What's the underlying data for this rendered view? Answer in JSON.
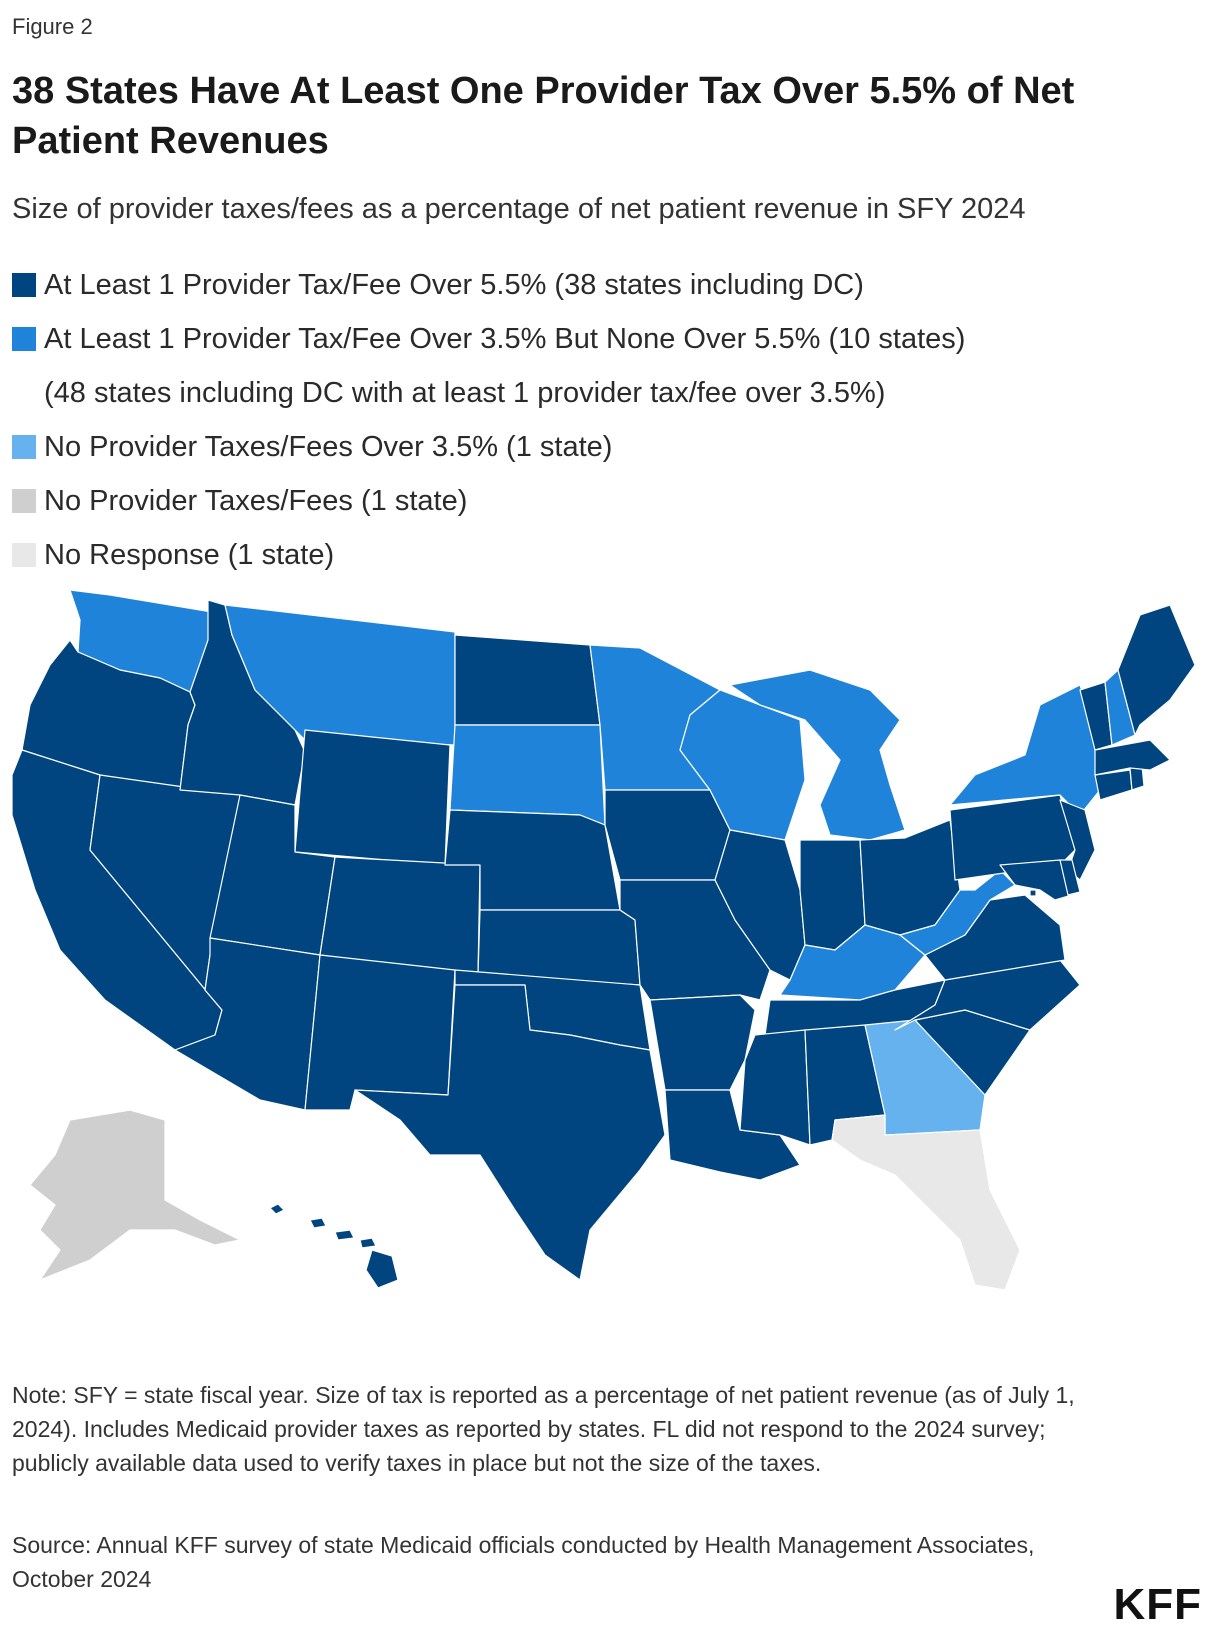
{
  "figure_label": "Figure 2",
  "title": "38 States Have At Least One Provider Tax Over 5.5% of Net Patient Revenues",
  "subtitle": "Size of provider taxes/fees as a percentage of net patient revenue in SFY 2024",
  "colors": {
    "over_5_5": "#00457f",
    "over_3_5": "#1f84d9",
    "none_over_3_5": "#66b2ee",
    "no_taxes": "#cfcfcf",
    "no_response": "#e8e8e8"
  },
  "legend": {
    "items": [
      {
        "label": "At Least 1 Provider Tax/Fee Over 5.5% (38 states including DC)",
        "color": "#00457f"
      },
      {
        "label": "At Least 1 Provider Tax/Fee Over 3.5% But None Over 5.5% (10 states)",
        "color": "#1f84d9"
      },
      {
        "label": "(48 states including DC with at least 1 provider tax/fee over 3.5%)"
      },
      {
        "label": "No Provider Taxes/Fees Over 3.5% (1 state)",
        "color": "#66b2ee"
      },
      {
        "label": "No Provider Taxes/Fees (1 state)",
        "color": "#cfcfcf"
      },
      {
        "label": "No Response (1 state)",
        "color": "#e8e8e8"
      }
    ]
  },
  "map_data": {
    "categories": {
      "over_5_5": [
        "OR",
        "ID",
        "NV",
        "CA",
        "UT",
        "AZ",
        "WY",
        "CO",
        "NM",
        "ND",
        "NE",
        "KS",
        "OK",
        "TX",
        "IA",
        "MO",
        "AR",
        "LA",
        "IL",
        "IN",
        "OH",
        "MS",
        "AL",
        "TN",
        "SC",
        "NC",
        "VA",
        "PA",
        "NJ",
        "MD",
        "DE",
        "DC",
        "CT",
        "RI",
        "MA",
        "VT",
        "ME",
        "HI"
      ],
      "over_3_5": [
        "WA",
        "MT",
        "SD",
        "MN",
        "WI",
        "MI",
        "NY",
        "NH",
        "WV",
        "KY"
      ],
      "none_over_3_5": [
        "GA"
      ],
      "no_taxes": [
        "AK"
      ],
      "no_response": [
        "FL"
      ]
    }
  },
  "footnote": "Note: SFY = state fiscal year. Size of tax is reported as a percentage of net patient revenue (as of July 1, 2024). Includes Medicaid provider taxes as reported by states. FL did not respond to the 2024 survey; publicly available data used to verify taxes in place but not the size of the taxes.",
  "source": "Source: Annual KFF survey of state Medicaid officials conducted by Health Management Associates, October 2024",
  "logo": "KFF"
}
